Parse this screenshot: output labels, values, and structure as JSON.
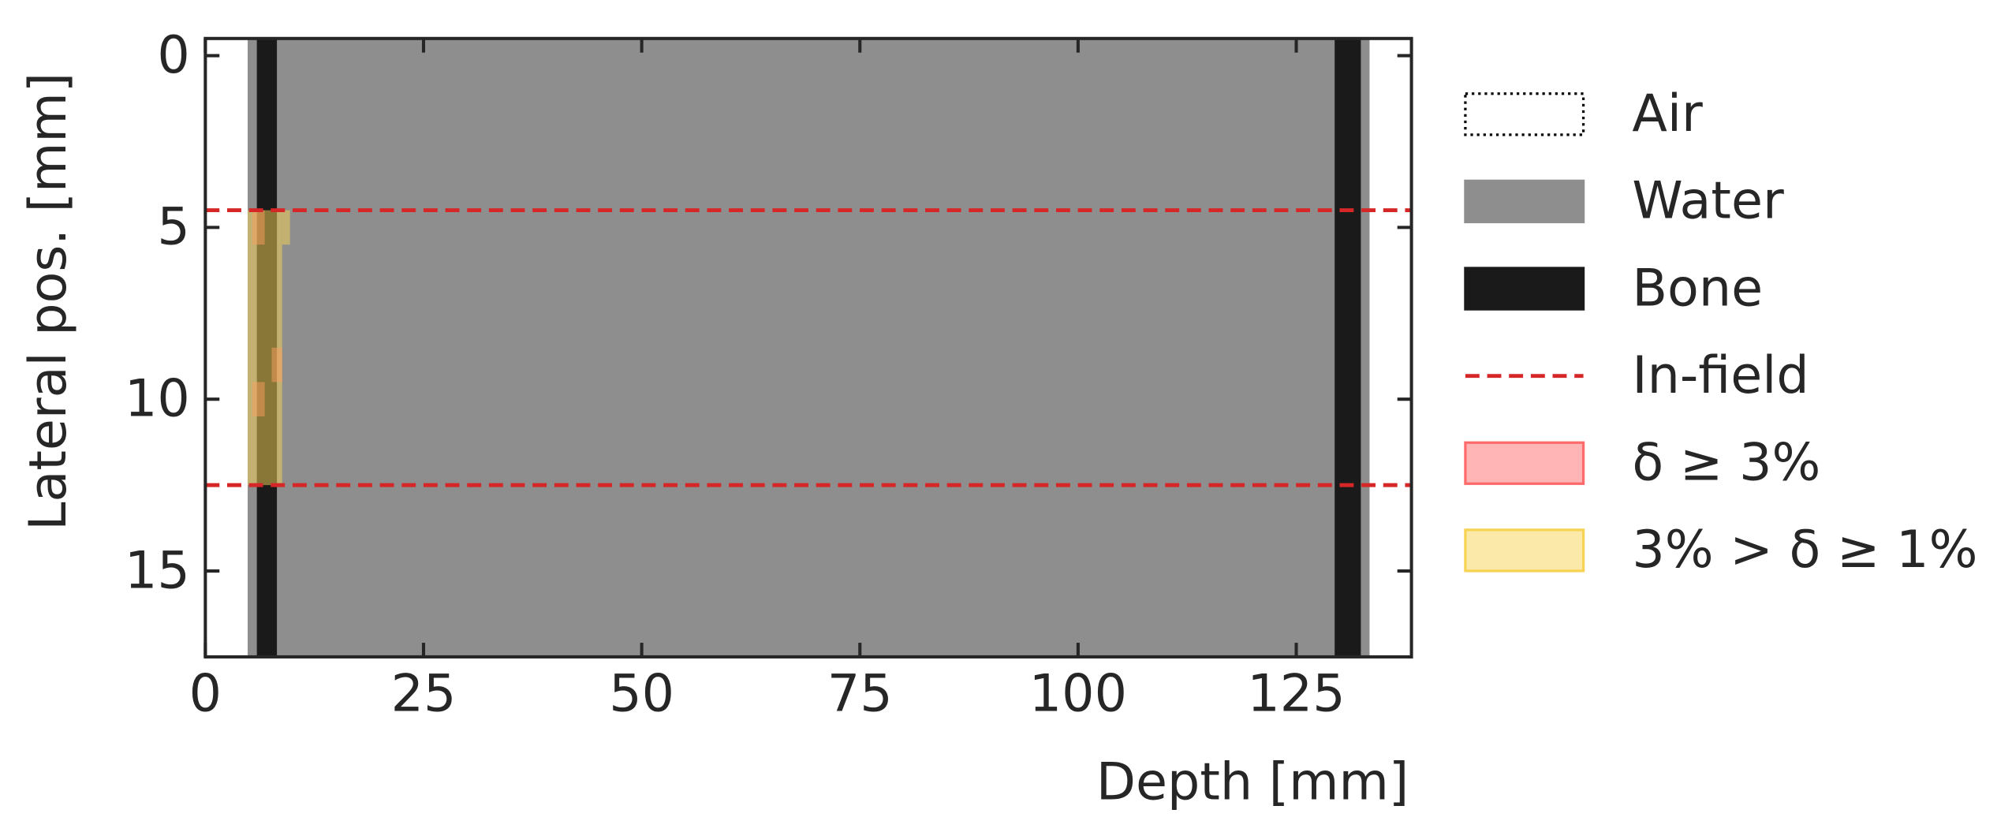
{
  "chart_data": {
    "type": "heatmap",
    "xlabel": "Depth [mm]",
    "ylabel": "Lateral pos. [mm]",
    "xlim": [
      0,
      138.2
    ],
    "ylim": [
      17.5,
      -0.5
    ],
    "xticks": [
      0,
      25,
      50,
      75,
      100,
      125
    ],
    "yticks": [
      0,
      5,
      10,
      15
    ],
    "materials": [
      {
        "name": "Air",
        "color": "#ffffff",
        "regions": []
      },
      {
        "name": "Water",
        "color": "#8e8e8e",
        "regions": [
          {
            "x": [
              4.85,
              133.4
            ],
            "y": [
              -0.5,
              17.5
            ]
          }
        ]
      },
      {
        "name": "Bone",
        "color": "#1a1a1a",
        "regions": [
          {
            "x": [
              5.9,
              8.2
            ],
            "y": [
              -0.5,
              17.5
            ]
          },
          {
            "x": [
              129.4,
              132.4
            ],
            "y": [
              -0.5,
              17.5
            ]
          }
        ]
      }
    ],
    "field_lines": {
      "name": "In-field",
      "color": "#d62728",
      "values": [
        4.5,
        12.5
      ]
    },
    "deviations": [
      {
        "name": "δ ≥ 3%",
        "color": "#ff6b6b",
        "alpha": 0.5,
        "regions": [
          {
            "x": [
              5.4,
              6.8
            ],
            "y": [
              4.5,
              5.5
            ]
          },
          {
            "x": [
              7.6,
              8.8
            ],
            "y": [
              8.5,
              9.5
            ]
          },
          {
            "x": [
              5.4,
              6.8
            ],
            "y": [
              9.5,
              10.5
            ]
          }
        ]
      },
      {
        "name": "3% > δ ≥ 1%",
        "color": "#f7d354",
        "alpha": 0.5,
        "regions": [
          {
            "x": [
              4.85,
              8.8
            ],
            "y": [
              4.5,
              12.5
            ]
          },
          {
            "x": [
              8.8,
              9.7
            ],
            "y": [
              4.5,
              5.5
            ]
          }
        ]
      }
    ]
  }
}
